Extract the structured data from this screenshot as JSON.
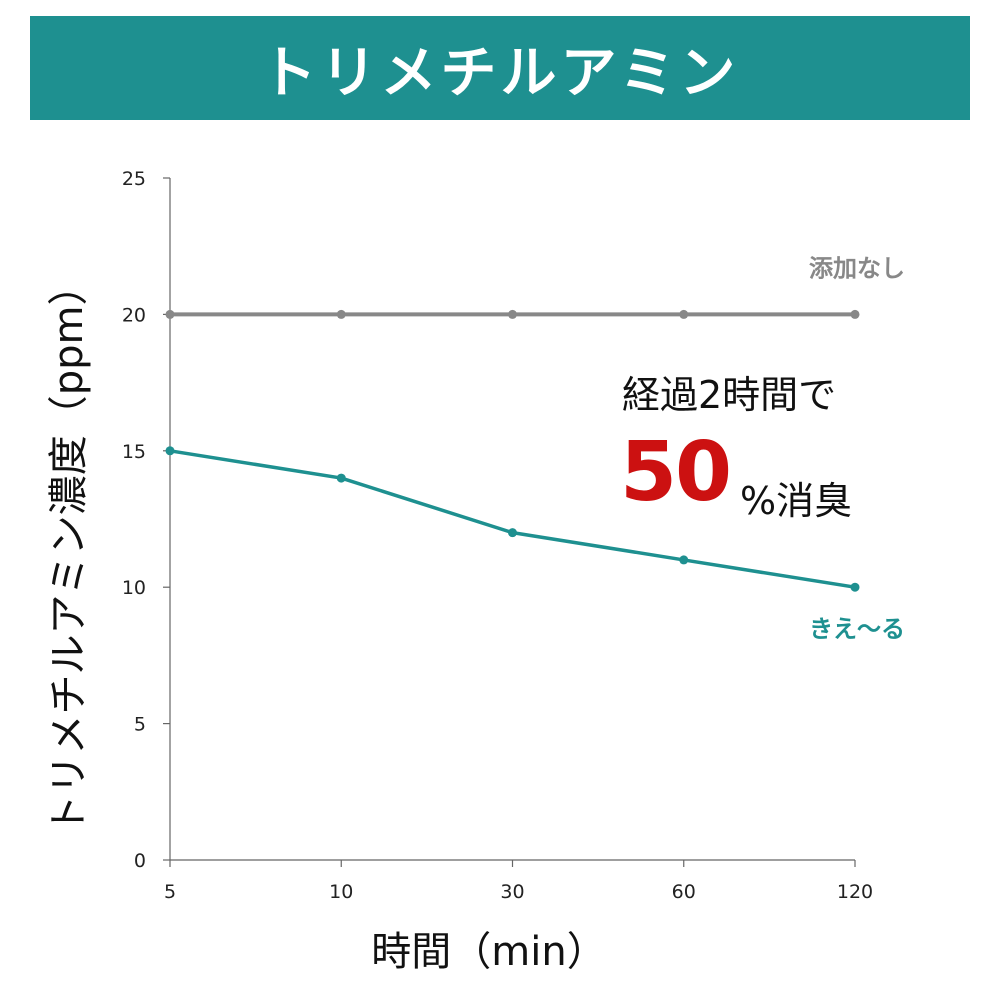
{
  "title": "トリメチルアミン",
  "colors": {
    "banner": "#1e9090",
    "series_control": "#888888",
    "series_product": "#1e9090",
    "highlight": "#cc1111"
  },
  "annotation": {
    "line1": "経過2時間で",
    "highlight": "50",
    "suffix": "%消臭"
  },
  "chart_data": {
    "type": "line",
    "xlabel": "時間（min）",
    "ylabel": "トリメチルアミン濃度（ppm）",
    "categories": [
      "5",
      "10",
      "30",
      "60",
      "120"
    ],
    "ylim": [
      0,
      25
    ],
    "yticks": [
      "0",
      "5",
      "10",
      "15",
      "20",
      "25"
    ],
    "grid": false,
    "series": [
      {
        "name": "添加なし",
        "values": [
          20,
          20,
          20,
          20,
          20
        ]
      },
      {
        "name": "きえ〜る",
        "values": [
          15,
          14,
          12,
          11,
          10
        ]
      }
    ]
  }
}
